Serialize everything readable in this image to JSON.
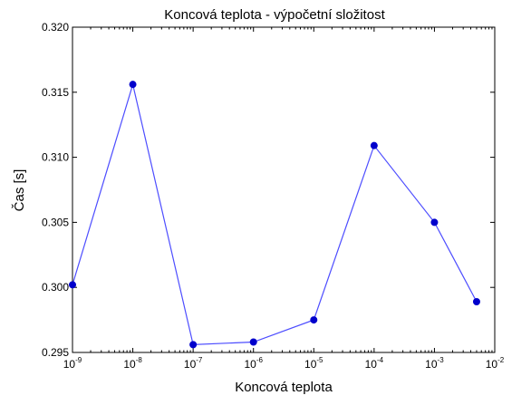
{
  "chart_data": {
    "type": "line",
    "title": "Koncová teplota - výpočetní složitost",
    "xlabel": "Koncová teplota",
    "ylabel": "Čas [s]",
    "x_scale": "log",
    "xlim": [
      1e-09,
      0.01
    ],
    "ylim": [
      0.295,
      0.32
    ],
    "x_ticks": [
      {
        "base": "10",
        "exp": "-9",
        "value": 1e-09
      },
      {
        "base": "10",
        "exp": "-8",
        "value": 1e-08
      },
      {
        "base": "10",
        "exp": "-7",
        "value": 1e-07
      },
      {
        "base": "10",
        "exp": "-6",
        "value": 1e-06
      },
      {
        "base": "10",
        "exp": "-5",
        "value": 1e-05
      },
      {
        "base": "10",
        "exp": "-4",
        "value": 0.0001
      },
      {
        "base": "10",
        "exp": "-3",
        "value": 0.001
      },
      {
        "base": "10",
        "exp": "-2",
        "value": 0.01
      }
    ],
    "y_ticks": [
      "0.295",
      "0.300",
      "0.305",
      "0.310",
      "0.315",
      "0.320"
    ],
    "grid": false,
    "series": [
      {
        "color": "#0000cc",
        "line_color": "#4d4dff",
        "marker": "circle",
        "x": [
          1e-09,
          1e-08,
          1e-07,
          1e-06,
          1e-05,
          0.0001,
          0.001,
          0.005
        ],
        "y": [
          0.3002,
          0.3156,
          0.2956,
          0.2958,
          0.2975,
          0.3109,
          0.305,
          0.2989
        ]
      }
    ]
  }
}
